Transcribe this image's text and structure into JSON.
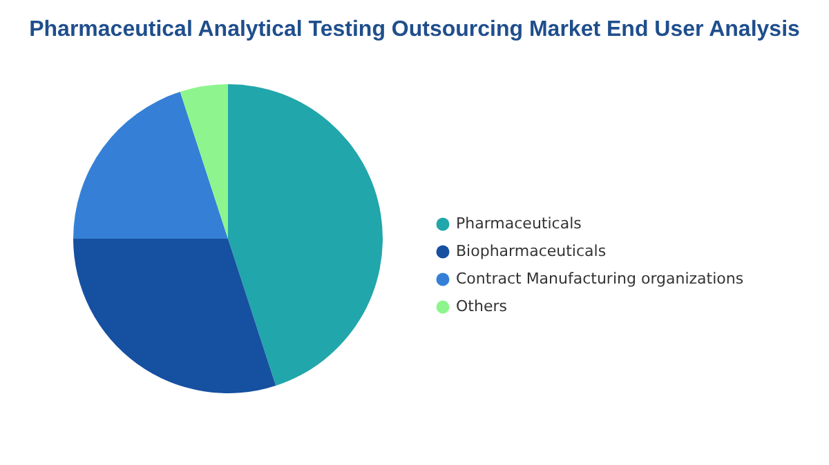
{
  "chart_data": {
    "type": "pie",
    "title": "Pharmaceutical Analytical Testing Outsourcing Market End User Analysis",
    "categories": [
      "Pharmaceuticals",
      "Biopharmaceuticals",
      "Contract Manufacturing organizations",
      "Others"
    ],
    "values": [
      45,
      30,
      20,
      5
    ],
    "colors": [
      "#21a6ab",
      "#1650a0",
      "#3580d6",
      "#8ef58e"
    ],
    "legend": "right"
  }
}
